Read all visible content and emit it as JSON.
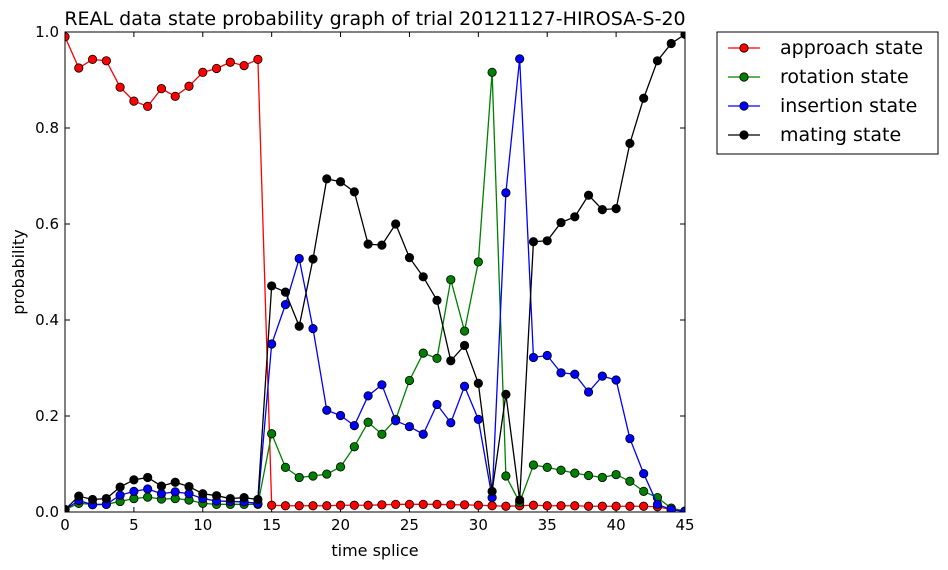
{
  "chart_data": {
    "type": "line",
    "title": "REAL data state probability graph of trial 20121127-HIROSA-S-20",
    "xlabel": "time splice",
    "ylabel": "probability",
    "xlim": [
      0,
      45
    ],
    "ylim": [
      0,
      1.0
    ],
    "xticks": [
      "0",
      "5",
      "10",
      "15",
      "20",
      "25",
      "30",
      "35",
      "40",
      "45"
    ],
    "yticks": [
      "0.0",
      "0.2",
      "0.4",
      "0.6",
      "0.8",
      "1.0"
    ],
    "legend_position": "outside-top-right",
    "grid": false,
    "x": [
      0,
      1,
      2,
      3,
      4,
      5,
      6,
      7,
      8,
      9,
      10,
      11,
      12,
      13,
      14,
      15,
      16,
      17,
      18,
      19,
      20,
      21,
      22,
      23,
      24,
      25,
      26,
      27,
      28,
      29,
      30,
      31,
      32,
      33,
      34,
      35,
      36,
      37,
      38,
      39,
      40,
      41,
      42,
      43,
      44,
      45
    ],
    "series": [
      {
        "name": "approach state",
        "color": "#ff0000",
        "values": [
          0.99,
          0.925,
          0.943,
          0.94,
          0.885,
          0.856,
          0.845,
          0.882,
          0.866,
          0.887,
          0.916,
          0.924,
          0.937,
          0.93,
          0.943,
          0.014,
          0.013,
          0.013,
          0.013,
          0.013,
          0.014,
          0.014,
          0.014,
          0.015,
          0.016,
          0.016,
          0.016,
          0.016,
          0.015,
          0.015,
          0.014,
          0.013,
          0.012,
          0.013,
          0.014,
          0.013,
          0.013,
          0.013,
          0.012,
          0.012,
          0.012,
          0.012,
          0.012,
          0.011,
          0.005,
          0.002
        ]
      },
      {
        "name": "rotation state",
        "color": "#008000",
        "values": [
          0.005,
          0.018,
          0.016,
          0.016,
          0.022,
          0.028,
          0.031,
          0.027,
          0.028,
          0.025,
          0.018,
          0.016,
          0.016,
          0.016,
          0.016,
          0.163,
          0.093,
          0.072,
          0.075,
          0.079,
          0.094,
          0.136,
          0.187,
          0.162,
          0.193,
          0.274,
          0.331,
          0.32,
          0.484,
          0.377,
          0.521,
          0.916,
          0.075,
          0.02,
          0.098,
          0.093,
          0.087,
          0.081,
          0.076,
          0.072,
          0.078,
          0.064,
          0.043,
          0.03,
          0.008,
          0.002
        ]
      },
      {
        "name": "insertion state",
        "color": "#0000ff",
        "values": [
          0.005,
          0.024,
          0.015,
          0.016,
          0.035,
          0.043,
          0.048,
          0.038,
          0.042,
          0.038,
          0.028,
          0.023,
          0.022,
          0.021,
          0.018,
          0.35,
          0.432,
          0.528,
          0.382,
          0.212,
          0.201,
          0.18,
          0.242,
          0.265,
          0.19,
          0.178,
          0.162,
          0.224,
          0.186,
          0.262,
          0.193,
          0.03,
          0.665,
          0.944,
          0.322,
          0.326,
          0.29,
          0.287,
          0.25,
          0.283,
          0.275,
          0.153,
          0.08,
          0.016,
          0.005,
          0.001
        ]
      },
      {
        "name": "mating state",
        "color": "#000000",
        "values": [
          0.005,
          0.033,
          0.026,
          0.028,
          0.052,
          0.067,
          0.072,
          0.054,
          0.062,
          0.053,
          0.038,
          0.034,
          0.028,
          0.03,
          0.026,
          0.471,
          0.458,
          0.387,
          0.527,
          0.694,
          0.688,
          0.667,
          0.558,
          0.556,
          0.6,
          0.53,
          0.49,
          0.441,
          0.315,
          0.347,
          0.268,
          0.043,
          0.245,
          0.025,
          0.563,
          0.565,
          0.603,
          0.615,
          0.66,
          0.63,
          0.632,
          0.768,
          0.862,
          0.94,
          0.976,
          0.995
        ]
      }
    ]
  }
}
